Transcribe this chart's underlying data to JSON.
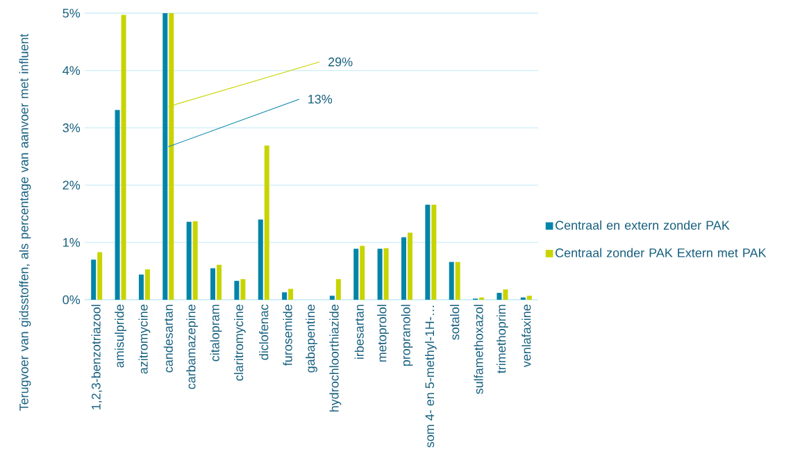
{
  "chart_data": {
    "type": "bar",
    "ylabel": "Terugvoer van gidsstoffen, als percentage van aanvoer met influent",
    "categories": [
      "1,2,3-benzotriazool",
      "amisulpride",
      "azitromycine",
      "candesartan",
      "carbamazepine",
      "citalopram",
      "claritromycine",
      "diclofenac",
      "furosemide",
      "gabapentine",
      "hydrochloorthiazide",
      "irbesartan",
      "metoprolol",
      "propranolol",
      "som 4- en 5-methyl-1H-…",
      "sotalol",
      "sulfamethoxazol",
      "trimethoprim",
      "venlafaxine"
    ],
    "series": [
      {
        "name": "Centraal en extern zonder PAK",
        "color": "#0085a8",
        "values": [
          0.7,
          3.31,
          0.44,
          5,
          1.36,
          0.55,
          0.33,
          1.4,
          0.13,
          0,
          0.07,
          0.89,
          0.89,
          1.09,
          1.66,
          0.66,
          0.02,
          0.12,
          0.04
        ]
      },
      {
        "name": "Centraal zonder PAK Extern met PAK",
        "color": "#c8d400",
        "values": [
          0.83,
          4.97,
          0.53,
          5,
          1.37,
          0.61,
          0.36,
          2.69,
          0.19,
          0,
          0.36,
          0.94,
          0.9,
          1.17,
          1.66,
          0.66,
          0.04,
          0.18,
          0.07
        ]
      }
    ],
    "ylim": [
      0,
      5
    ],
    "yticks": [
      {
        "value": 0,
        "label": "0%"
      },
      {
        "value": 1,
        "label": "1%"
      },
      {
        "value": 2,
        "label": "2%"
      },
      {
        "value": 3,
        "label": "3%"
      },
      {
        "value": 4,
        "label": "4%"
      },
      {
        "value": 5,
        "label": "5%"
      }
    ],
    "grid": "y",
    "legend": "right",
    "annotations": [
      {
        "text": "13%",
        "x": "candesartan",
        "y": 2.67
      },
      {
        "text": "29%",
        "x": "candesartan",
        "y": 3.37
      }
    ]
  }
}
